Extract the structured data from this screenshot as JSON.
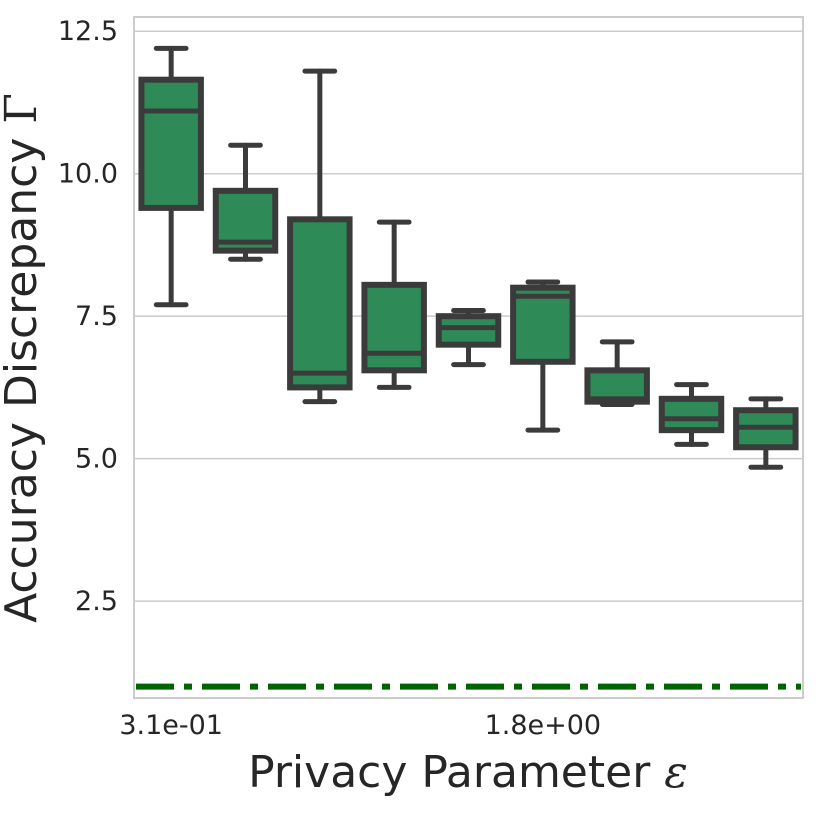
{
  "chart_data": {
    "type": "box",
    "xlabel": "Privacy Parameter ",
    "xlabel_symbol": "ε",
    "ylabel": "Accuracy Discrepancy ",
    "ylabel_symbol": "Γ",
    "ylim": [
      0.8,
      12.75
    ],
    "y_ticks": [
      "2.5",
      "5.0",
      "7.5",
      "10.0",
      "12.5"
    ],
    "y_tick_values": [
      2.5,
      5.0,
      7.5,
      10.0,
      12.5
    ],
    "x_tick_labels": [
      "3.1e-01",
      "1.8e+00"
    ],
    "x_tick_positions": [
      0,
      5
    ],
    "box_color": "#2e8b57",
    "edge_color": "#3b3b3b",
    "grid": true,
    "boxes": [
      {
        "position": 0,
        "whislo": 7.7,
        "q1": 9.4,
        "med": 11.1,
        "q3": 11.65,
        "whishi": 12.2
      },
      {
        "position": 1,
        "whislo": 8.5,
        "q1": 8.65,
        "med": 8.8,
        "q3": 9.7,
        "whishi": 10.5
      },
      {
        "position": 2,
        "whislo": 6.0,
        "q1": 6.25,
        "med": 6.5,
        "q3": 9.2,
        "whishi": 11.8
      },
      {
        "position": 3,
        "whislo": 6.25,
        "q1": 6.55,
        "med": 6.85,
        "q3": 8.05,
        "whishi": 9.15
      },
      {
        "position": 4,
        "whislo": 6.65,
        "q1": 7.0,
        "med": 7.3,
        "q3": 7.5,
        "whishi": 7.6
      },
      {
        "position": 5,
        "whislo": 5.5,
        "q1": 6.7,
        "med": 7.85,
        "q3": 8.0,
        "whishi": 8.1
      },
      {
        "position": 6,
        "whislo": 5.95,
        "q1": 6.0,
        "med": 6.05,
        "q3": 6.55,
        "whishi": 7.05
      },
      {
        "position": 7,
        "whislo": 5.25,
        "q1": 5.5,
        "med": 5.7,
        "q3": 6.05,
        "whishi": 6.3
      },
      {
        "position": 8,
        "whislo": 4.85,
        "q1": 5.2,
        "med": 5.55,
        "q3": 5.85,
        "whishi": 6.05
      }
    ],
    "reference_line": {
      "y": 1.0,
      "color": "#006400",
      "style": "dashdot"
    }
  }
}
